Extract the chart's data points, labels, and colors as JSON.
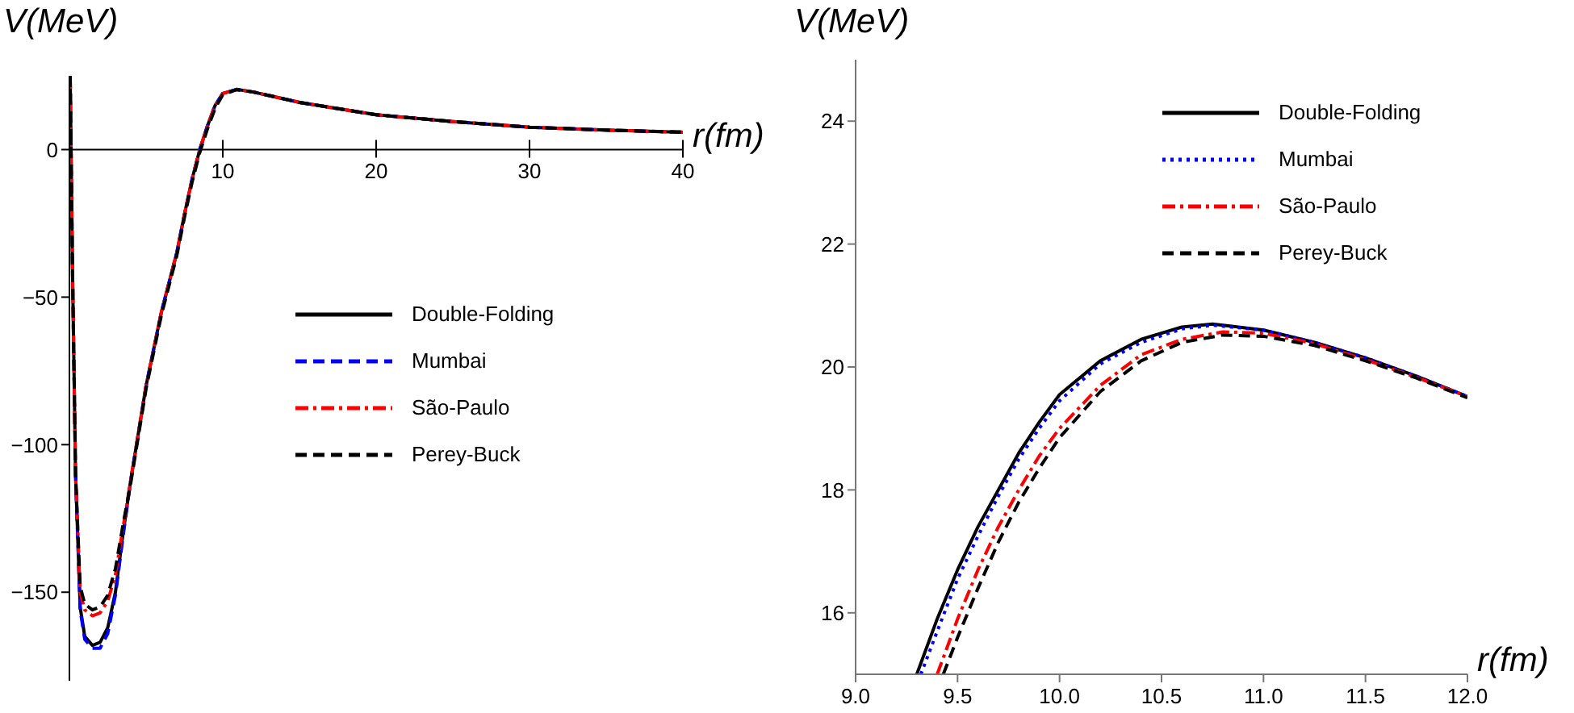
{
  "chart_data": [
    {
      "type": "line",
      "xlabel": "r(fm)",
      "ylabel": "V(MeV)",
      "xlim": [
        0,
        40
      ],
      "ylim": [
        -180,
        25
      ],
      "xticks": [
        10,
        20,
        30,
        40
      ],
      "yticks": [
        0,
        {
          "value": -50,
          "label": "−50"
        },
        {
          "value": -100,
          "label": "−100"
        },
        {
          "value": -150,
          "label": "−150"
        }
      ],
      "legend": "right",
      "series": [
        {
          "name": "Double-Folding",
          "color": "#000000",
          "line_style": "solid",
          "x": [
            0.05,
            0.2,
            0.4,
            0.7,
            1.0,
            1.5,
            2.0,
            2.5,
            3.0,
            3.5,
            4,
            5,
            6,
            7,
            7.5,
            8,
            8.5,
            9,
            9.5,
            10,
            10.9,
            12,
            15,
            20,
            25,
            30,
            35,
            40
          ],
          "values": [
            25,
            -40,
            -110,
            -155,
            -165,
            -168,
            -167,
            -162,
            -150,
            -130,
            -112,
            -80,
            -55,
            -35,
            -22,
            -10,
            0,
            8,
            15,
            19,
            20.4,
            19.5,
            16,
            11.8,
            9.5,
            7.6,
            6.6,
            5.9
          ]
        },
        {
          "name": "Mumbai",
          "color": "#0000ff",
          "line_style": "dashed",
          "x": [
            0.4,
            0.7,
            1.0,
            1.5,
            2.0,
            2.5,
            3.0,
            3.5,
            4,
            5,
            6,
            7,
            7.5,
            8,
            8.5,
            9,
            9.5,
            10,
            10.9,
            12,
            15,
            20,
            25,
            30,
            35,
            40
          ],
          "values": [
            -110,
            -156,
            -166,
            -169,
            -169,
            -164,
            -151,
            -131,
            -112,
            -80,
            -55,
            -35,
            -22,
            -10,
            0,
            8,
            15,
            19,
            20.4,
            19.5,
            16,
            11.8,
            9.5,
            7.6,
            6.6,
            5.9
          ]
        },
        {
          "name": "São-Paulo",
          "color": "#ff0000",
          "line_style": "dashdot",
          "x": [
            0.05,
            0.2,
            0.4,
            0.7,
            1.0,
            1.5,
            2.0,
            2.5,
            3.0,
            3.5,
            4,
            5,
            6,
            7,
            7.5,
            8,
            8.5,
            9,
            9.5,
            10,
            10.9,
            12,
            15,
            20,
            25,
            30,
            35,
            40
          ],
          "values": [
            25,
            -40,
            -110,
            -150,
            -156,
            -158,
            -157,
            -153,
            -144,
            -128,
            -112,
            -80,
            -55,
            -35,
            -22,
            -10,
            0,
            8,
            15,
            19,
            20.4,
            19.5,
            16,
            11.8,
            9.5,
            7.6,
            6.6,
            5.9
          ]
        },
        {
          "name": "Perey-Buck",
          "color": "#000000",
          "line_style": "dashed",
          "x": [
            0.05,
            0.2,
            0.4,
            0.7,
            1.0,
            1.5,
            2.0,
            2.5,
            3.0,
            3.5,
            4,
            5,
            6,
            7,
            7.5,
            8,
            8.5,
            9,
            9.5,
            10,
            10.9,
            12,
            15,
            20,
            25,
            30,
            35,
            40
          ],
          "values": [
            25,
            -40,
            -110,
            -148,
            -154,
            -156,
            -155,
            -151,
            -142,
            -127,
            -113,
            -81,
            -56,
            -36,
            -23,
            -11,
            -1,
            7,
            14,
            18.6,
            20.3,
            19.5,
            16,
            11.8,
            9.5,
            7.6,
            6.6,
            5.9
          ]
        }
      ]
    },
    {
      "type": "line",
      "xlabel": "r(fm)",
      "ylabel": "V(MeV)",
      "xlim": [
        9,
        12
      ],
      "ylim": [
        15,
        25
      ],
      "xticks": [
        {
          "value": 9,
          "label": "9.0"
        },
        9.5,
        {
          "value": 10,
          "label": "10.0"
        },
        10.5,
        {
          "value": 11,
          "label": "11.0"
        },
        11.5,
        {
          "value": 12,
          "label": "12.0"
        }
      ],
      "yticks": [
        16,
        18,
        20,
        22,
        24
      ],
      "legend": "top right",
      "series": [
        {
          "name": "Double-Folding",
          "color": "#000000",
          "line_style": "solid",
          "x": [
            9.3,
            9.4,
            9.5,
            9.6,
            9.7,
            9.8,
            9.9,
            10.0,
            10.2,
            10.4,
            10.6,
            10.75,
            11.0,
            11.25,
            11.5,
            11.75,
            12.0
          ],
          "values": [
            15.0,
            15.9,
            16.7,
            17.4,
            18.0,
            18.6,
            19.1,
            19.55,
            20.1,
            20.45,
            20.65,
            20.7,
            20.6,
            20.4,
            20.15,
            19.85,
            19.52
          ]
        },
        {
          "name": "Mumbai",
          "color": "#0000ff",
          "line_style": "dotted",
          "x": [
            9.32,
            9.4,
            9.5,
            9.6,
            9.7,
            9.8,
            9.9,
            10.0,
            10.2,
            10.4,
            10.6,
            10.75,
            11.0,
            11.25,
            11.5,
            11.75,
            12.0
          ],
          "values": [
            15.0,
            15.7,
            16.55,
            17.25,
            17.9,
            18.5,
            19.0,
            19.45,
            20.05,
            20.4,
            20.62,
            20.68,
            20.6,
            20.4,
            20.15,
            19.85,
            19.52
          ]
        },
        {
          "name": "São-Paulo",
          "color": "#ff0000",
          "line_style": "dashdot",
          "x": [
            9.4,
            9.5,
            9.6,
            9.7,
            9.8,
            9.9,
            10.0,
            10.2,
            10.4,
            10.6,
            10.8,
            11.0,
            11.25,
            11.5,
            11.75,
            12.0
          ],
          "values": [
            15.0,
            15.9,
            16.7,
            17.4,
            18.0,
            18.55,
            19.0,
            19.7,
            20.2,
            20.45,
            20.57,
            20.55,
            20.38,
            20.12,
            19.83,
            19.52
          ]
        },
        {
          "name": "Perey-Buck",
          "color": "#000000",
          "line_style": "dashed",
          "x": [
            9.43,
            9.5,
            9.6,
            9.7,
            9.8,
            9.9,
            10.0,
            10.2,
            10.4,
            10.6,
            10.8,
            11.0,
            11.25,
            11.5,
            11.75,
            12.0
          ],
          "values": [
            15.0,
            15.6,
            16.4,
            17.15,
            17.8,
            18.35,
            18.85,
            19.6,
            20.1,
            20.4,
            20.52,
            20.5,
            20.35,
            20.1,
            19.82,
            19.5
          ]
        }
      ]
    }
  ]
}
